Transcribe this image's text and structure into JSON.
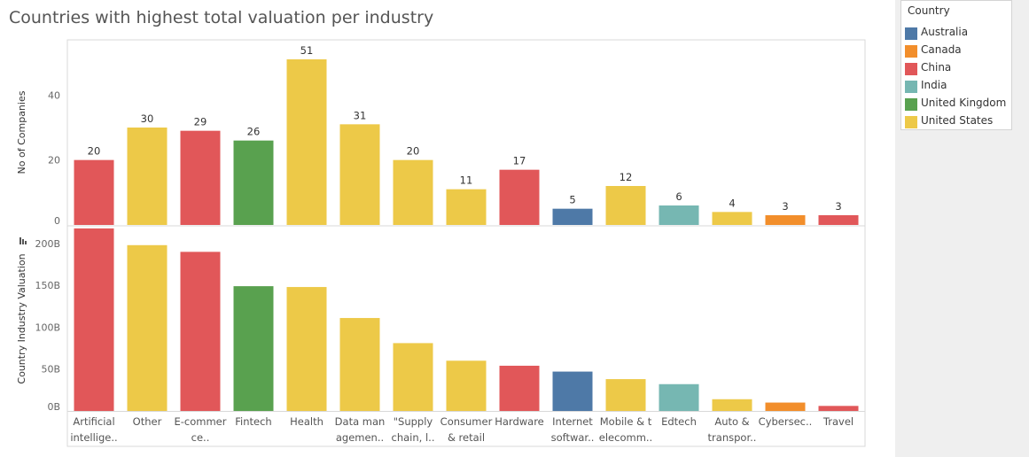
{
  "title": "Countries with highest total valuation per  industry",
  "legend": {
    "title": "Country",
    "items": [
      {
        "label": "Australia",
        "color": "#4e79a7"
      },
      {
        "label": "Canada",
        "color": "#f28e2b"
      },
      {
        "label": "China",
        "color": "#e15759"
      },
      {
        "label": "India",
        "color": "#76b7b2"
      },
      {
        "label": "United Kingdom",
        "color": "#59a14f"
      },
      {
        "label": "United States",
        "color": "#edc948"
      }
    ]
  },
  "chart_data": [
    {
      "type": "bar",
      "ylabel": "No of Companies",
      "ylim": [
        0,
        57
      ],
      "yticks": [
        0,
        20,
        40
      ],
      "ytick_labels": [
        "0",
        "20",
        "40"
      ],
      "categories": [
        [
          "Artificial",
          "intellige.."
        ],
        [
          "Other"
        ],
        [
          "E-commer",
          "ce.."
        ],
        [
          "Fintech"
        ],
        [
          "Health"
        ],
        [
          "Data man",
          "agemen.."
        ],
        [
          "\"Supply",
          "chain, l.."
        ],
        [
          "Consumer",
          "& retail"
        ],
        [
          "Hardware"
        ],
        [
          "Internet",
          "softwar.."
        ],
        [
          "Mobile & t",
          "elecomm.."
        ],
        [
          "Edtech"
        ],
        [
          "Auto &",
          "transpor.."
        ],
        [
          "Cybersec.."
        ],
        [
          "Travel"
        ]
      ],
      "values": [
        20,
        30,
        29,
        26,
        51,
        31,
        20,
        11,
        17,
        5,
        12,
        6,
        4,
        3,
        3
      ],
      "countries": [
        "China",
        "United States",
        "China",
        "United Kingdom",
        "United States",
        "United States",
        "United States",
        "United States",
        "China",
        "Australia",
        "United States",
        "India",
        "United States",
        "Canada",
        "China"
      ],
      "grid": false
    },
    {
      "type": "bar",
      "ylabel": "Country Industry Valuation",
      "ylim": [
        0,
        220
      ],
      "yticks": [
        0,
        50,
        100,
        150,
        200
      ],
      "ytick_labels": [
        "0B",
        "50B",
        "100B",
        "150B",
        "200B"
      ],
      "unit": "B",
      "values": [
        218,
        198,
        190,
        149,
        148,
        111,
        81,
        60,
        54,
        47,
        38,
        32,
        14,
        10,
        6
      ],
      "countries": [
        "China",
        "United States",
        "China",
        "United Kingdom",
        "United States",
        "United States",
        "United States",
        "United States",
        "China",
        "Australia",
        "United States",
        "India",
        "United States",
        "Canada",
        "China"
      ],
      "grid": false
    }
  ]
}
